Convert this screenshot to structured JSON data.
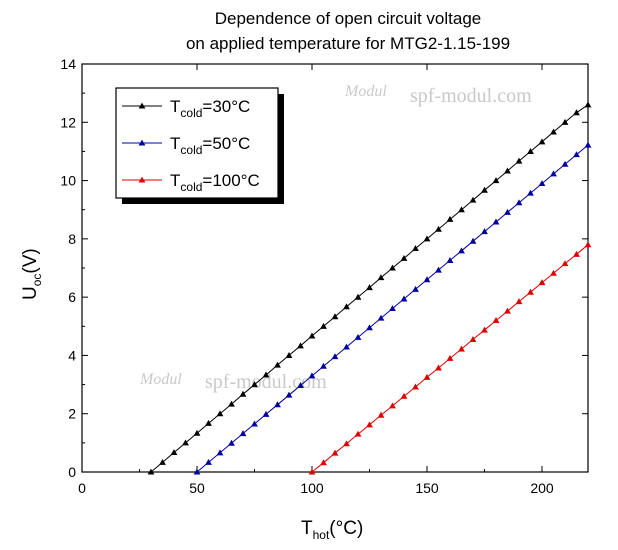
{
  "chart_data": {
    "type": "line",
    "title_lines": [
      "Dependence of open circuit voltage",
      "on applied temperature for MTG2-1.15-199"
    ],
    "xlabel": {
      "main": "T",
      "sub": "hot",
      "unit": "(°C)"
    },
    "ylabel": {
      "main": "U",
      "sub": "oc",
      "unit": "(V)"
    },
    "xlim": [
      0,
      220
    ],
    "ylim": [
      0,
      14
    ],
    "x_ticks": [
      0,
      50,
      100,
      150,
      200
    ],
    "y_ticks": [
      0,
      2,
      4,
      6,
      8,
      10,
      12,
      14
    ],
    "grid": false,
    "legend_position": "top-left",
    "series": [
      {
        "name": {
          "main": "T",
          "sub": "cold",
          "rest": "=30°C"
        },
        "color": "#000000",
        "marker": "triangle-up",
        "x": [
          30,
          35,
          40,
          45,
          50,
          55,
          60,
          65,
          70,
          75,
          80,
          85,
          90,
          95,
          100,
          105,
          110,
          115,
          120,
          125,
          130,
          135,
          140,
          145,
          150,
          155,
          160,
          165,
          170,
          175,
          180,
          185,
          190,
          195,
          200,
          205,
          210,
          215,
          220
        ],
        "y": [
          0.0,
          0.33,
          0.67,
          1.0,
          1.33,
          1.67,
          2.0,
          2.33,
          2.67,
          3.0,
          3.33,
          3.67,
          4.0,
          4.33,
          4.67,
          5.0,
          5.33,
          5.67,
          6.0,
          6.33,
          6.67,
          7.0,
          7.33,
          7.67,
          8.0,
          8.33,
          8.67,
          9.0,
          9.33,
          9.67,
          10.0,
          10.33,
          10.67,
          11.0,
          11.33,
          11.67,
          12.0,
          12.33,
          12.6
        ]
      },
      {
        "name": {
          "main": "T",
          "sub": "cold",
          "rest": "=50°C"
        },
        "color": "#0000a0",
        "marker": "triangle-up",
        "x": [
          50,
          55,
          60,
          65,
          70,
          75,
          80,
          85,
          90,
          95,
          100,
          105,
          110,
          115,
          120,
          125,
          130,
          135,
          140,
          145,
          150,
          155,
          160,
          165,
          170,
          175,
          180,
          185,
          190,
          195,
          200,
          205,
          210,
          215,
          220
        ],
        "y": [
          0.0,
          0.33,
          0.66,
          0.99,
          1.32,
          1.65,
          1.98,
          2.31,
          2.64,
          2.97,
          3.3,
          3.63,
          3.96,
          4.29,
          4.62,
          4.95,
          5.28,
          5.61,
          5.94,
          6.27,
          6.6,
          6.93,
          7.26,
          7.59,
          7.92,
          8.25,
          8.58,
          8.91,
          9.24,
          9.57,
          9.9,
          10.23,
          10.56,
          10.89,
          11.22
        ]
      },
      {
        "name": {
          "main": "T",
          "sub": "cold",
          "rest": "=100°C"
        },
        "color": "#e00000",
        "marker": "triangle-up",
        "x": [
          100,
          105,
          110,
          115,
          120,
          125,
          130,
          135,
          140,
          145,
          150,
          155,
          160,
          165,
          170,
          175,
          180,
          185,
          190,
          195,
          200,
          205,
          210,
          215,
          220
        ],
        "y": [
          0.0,
          0.32,
          0.65,
          0.97,
          1.3,
          1.62,
          1.95,
          2.27,
          2.6,
          2.92,
          3.25,
          3.57,
          3.9,
          4.22,
          4.55,
          4.87,
          5.2,
          5.52,
          5.85,
          6.17,
          6.5,
          6.82,
          7.15,
          7.47,
          7.8
        ]
      }
    ]
  },
  "watermark": {
    "logo": "Modul",
    "text": "spf-modul.com"
  }
}
